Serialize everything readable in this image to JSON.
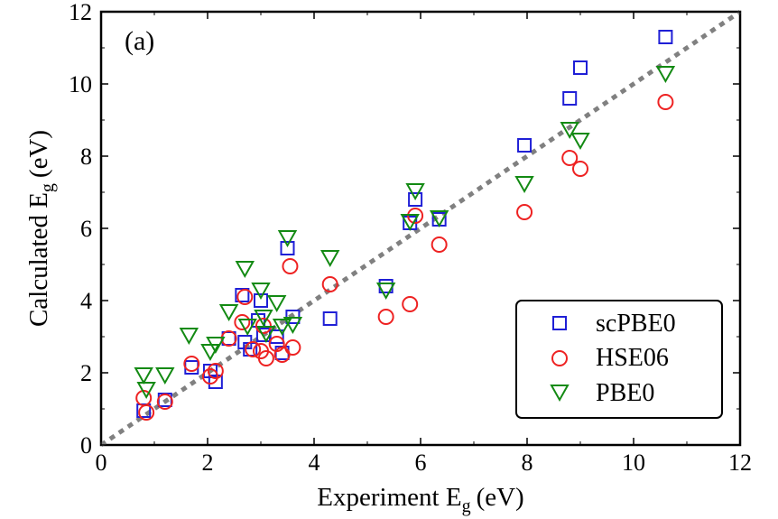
{
  "chart_data": {
    "type": "scatter",
    "panel_label": "(a)",
    "xlabel": "Experiment E",
    "xlabel_sub": "g",
    "xlabel_unit": "(eV)",
    "ylabel": "Calculated E",
    "ylabel_sub": "g",
    "ylabel_unit": "(eV)",
    "xlim": [
      0,
      12
    ],
    "ylim": [
      0,
      12
    ],
    "xticks": [
      "0",
      "2",
      "4",
      "6",
      "8",
      "10",
      "12"
    ],
    "yticks": [
      "0",
      "2",
      "4",
      "6",
      "8",
      "10",
      "12"
    ],
    "grid": false,
    "legend_position": "bottom-right",
    "reference_line": {
      "style": "dashed",
      "color": "#808080",
      "from": [
        0,
        0
      ],
      "to": [
        12,
        12
      ]
    },
    "series": [
      {
        "name": "scPBE0",
        "marker": "square",
        "color": "#1f1fd6",
        "points": [
          [
            0.8,
            0.95
          ],
          [
            1.2,
            1.25
          ],
          [
            1.7,
            2.15
          ],
          [
            2.05,
            2.05
          ],
          [
            2.15,
            1.75
          ],
          [
            2.4,
            2.95
          ],
          [
            2.65,
            4.15
          ],
          [
            2.7,
            2.85
          ],
          [
            2.8,
            2.65
          ],
          [
            2.95,
            3.45
          ],
          [
            3.0,
            4.0
          ],
          [
            3.05,
            3.05
          ],
          [
            3.3,
            3.0
          ],
          [
            3.4,
            2.55
          ],
          [
            3.5,
            5.45
          ],
          [
            3.6,
            3.55
          ],
          [
            4.3,
            3.5
          ],
          [
            5.35,
            4.4
          ],
          [
            5.8,
            6.15
          ],
          [
            5.9,
            6.8
          ],
          [
            6.35,
            6.25
          ],
          [
            7.95,
            8.3
          ],
          [
            8.8,
            9.6
          ],
          [
            9.0,
            10.45
          ],
          [
            10.6,
            11.3
          ]
        ]
      },
      {
        "name": "HSE06",
        "marker": "circle",
        "color": "#ee2222",
        "points": [
          [
            0.8,
            1.3
          ],
          [
            0.85,
            0.9
          ],
          [
            1.2,
            1.2
          ],
          [
            1.7,
            2.25
          ],
          [
            2.05,
            1.9
          ],
          [
            2.15,
            2.05
          ],
          [
            2.4,
            2.95
          ],
          [
            2.65,
            3.4
          ],
          [
            2.7,
            4.1
          ],
          [
            2.85,
            2.65
          ],
          [
            3.0,
            2.6
          ],
          [
            3.05,
            3.3
          ],
          [
            3.1,
            2.4
          ],
          [
            3.3,
            2.8
          ],
          [
            3.4,
            2.5
          ],
          [
            3.55,
            4.95
          ],
          [
            3.6,
            2.7
          ],
          [
            4.3,
            4.45
          ],
          [
            5.35,
            3.55
          ],
          [
            5.8,
            3.9
          ],
          [
            5.9,
            6.35
          ],
          [
            6.35,
            5.55
          ],
          [
            7.95,
            6.45
          ],
          [
            8.8,
            7.95
          ],
          [
            9.0,
            7.65
          ],
          [
            10.6,
            9.5
          ]
        ]
      },
      {
        "name": "PBE0",
        "marker": "triangle-down",
        "color": "#138a13",
        "points": [
          [
            0.8,
            1.95
          ],
          [
            0.85,
            1.55
          ],
          [
            1.2,
            1.95
          ],
          [
            1.65,
            3.05
          ],
          [
            2.05,
            2.6
          ],
          [
            2.15,
            2.8
          ],
          [
            2.4,
            3.7
          ],
          [
            2.7,
            4.9
          ],
          [
            2.75,
            3.3
          ],
          [
            3.0,
            4.3
          ],
          [
            3.05,
            3.55
          ],
          [
            3.1,
            3.1
          ],
          [
            3.3,
            3.95
          ],
          [
            3.4,
            3.3
          ],
          [
            3.5,
            5.75
          ],
          [
            3.6,
            3.35
          ],
          [
            4.3,
            5.2
          ],
          [
            5.35,
            4.3
          ],
          [
            5.8,
            6.2
          ],
          [
            5.9,
            7.05
          ],
          [
            6.35,
            6.3
          ],
          [
            7.95,
            7.25
          ],
          [
            8.8,
            8.75
          ],
          [
            9.0,
            8.45
          ],
          [
            10.6,
            10.3
          ]
        ]
      }
    ]
  }
}
